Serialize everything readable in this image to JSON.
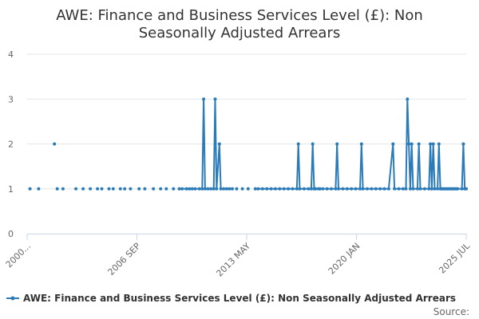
{
  "chart_data": {
    "type": "line",
    "title_lines": [
      "AWE: Finance and Business Services Level (£): Non",
      "Seasonally Adjusted Arrears"
    ],
    "xlabel": "",
    "ylabel": "",
    "ylim": [
      0,
      4
    ],
    "yticks": [
      "0",
      "1",
      "2",
      "3",
      "4"
    ],
    "xticks": [
      "2000...",
      "2006 SEP",
      "2013 MAY",
      "2020 JAN",
      "2025 JUL"
    ],
    "x_range": [
      "2000-01",
      "2025-07"
    ],
    "grid": "horizontal",
    "legend_position": "bottom",
    "color": "#2b7bb9",
    "source_label": "Source:",
    "series": [
      {
        "name": "AWE: Finance and Business Services Level (£): Non Seasonally Adjusted Arrears",
        "segments": [
          {
            "style": "points",
            "points": [
              [
                "2000-03",
                1
              ],
              [
                "2000-09",
                1
              ],
              [
                "2001-08",
                2
              ],
              [
                "2001-10",
                1
              ],
              [
                "2002-02",
                1
              ],
              [
                "2002-11",
                1
              ],
              [
                "2003-04",
                1
              ],
              [
                "2003-09",
                1
              ],
              [
                "2004-02",
                1
              ],
              [
                "2004-05",
                1
              ],
              [
                "2004-10",
                1
              ],
              [
                "2005-01",
                1
              ],
              [
                "2005-06",
                1
              ],
              [
                "2005-09",
                1
              ],
              [
                "2006-01",
                1
              ],
              [
                "2006-07",
                1
              ],
              [
                "2006-11",
                1
              ],
              [
                "2007-05",
                1
              ],
              [
                "2007-10",
                1
              ],
              [
                "2008-02",
                1
              ],
              [
                "2008-07",
                1
              ],
              [
                "2008-11",
                1
              ]
            ]
          },
          {
            "style": "line",
            "points": [
              [
                "2009-01",
                1
              ],
              [
                "2009-04",
                1
              ],
              [
                "2009-06",
                1
              ],
              [
                "2009-08",
                1
              ],
              [
                "2009-10",
                1
              ],
              [
                "2010-01",
                1
              ],
              [
                "2010-03",
                1
              ],
              [
                "2010-04",
                3
              ],
              [
                "2010-05",
                1
              ],
              [
                "2010-07",
                1
              ],
              [
                "2010-09",
                1
              ],
              [
                "2010-11",
                1
              ],
              [
                "2010-12",
                3
              ],
              [
                "2011-01",
                1
              ],
              [
                "2011-03",
                2
              ],
              [
                "2011-04",
                1
              ],
              [
                "2011-06",
                1
              ],
              [
                "2011-08",
                1
              ],
              [
                "2011-10",
                1
              ],
              [
                "2011-12",
                1
              ]
            ]
          },
          {
            "style": "points",
            "points": [
              [
                "2012-03",
                1
              ],
              [
                "2012-07",
                1
              ],
              [
                "2012-11",
                1
              ],
              [
                "2013-04",
                1
              ]
            ]
          },
          {
            "style": "line",
            "points": [
              [
                "2013-06",
                1
              ],
              [
                "2013-09",
                1
              ],
              [
                "2013-12",
                1
              ],
              [
                "2014-03",
                1
              ],
              [
                "2014-06",
                1
              ],
              [
                "2014-09",
                1
              ],
              [
                "2014-12",
                1
              ],
              [
                "2015-03",
                1
              ],
              [
                "2015-06",
                1
              ],
              [
                "2015-09",
                1
              ],
              [
                "2015-10",
                2
              ],
              [
                "2015-11",
                1
              ],
              [
                "2016-02",
                1
              ],
              [
                "2016-05",
                1
              ],
              [
                "2016-07",
                1
              ],
              [
                "2016-08",
                2
              ],
              [
                "2016-09",
                1
              ],
              [
                "2016-12",
                1
              ],
              [
                "2017-03",
                1
              ],
              [
                "2017-06",
                1
              ],
              [
                "2017-09",
                1
              ],
              [
                "2017-12",
                1
              ],
              [
                "2018-01",
                2
              ],
              [
                "2018-02",
                1
              ],
              [
                "2018-05",
                1
              ],
              [
                "2018-08",
                1
              ],
              [
                "2018-11",
                1
              ],
              [
                "2019-02",
                1
              ],
              [
                "2019-05",
                1
              ],
              [
                "2019-06",
                2
              ],
              [
                "2019-07",
                1
              ],
              [
                "2019-10",
                1
              ],
              [
                "2020-01",
                1
              ],
              [
                "2020-04",
                1
              ],
              [
                "2020-07",
                1
              ],
              [
                "2020-10",
                1
              ],
              [
                "2021-01",
                1
              ],
              [
                "2021-04",
                2
              ],
              [
                "2021-05",
                1
              ],
              [
                "2021-08",
                1
              ],
              [
                "2021-11",
                1
              ],
              [
                "2022-01",
                1
              ],
              [
                "2022-02",
                3
              ],
              [
                "2022-03",
                2
              ],
              [
                "2022-04",
                1
              ],
              [
                "2022-05",
                2
              ],
              [
                "2022-06",
                1
              ],
              [
                "2022-09",
                1
              ],
              [
                "2022-10",
                2
              ],
              [
                "2022-11",
                1
              ],
              [
                "2023-02",
                1
              ],
              [
                "2023-05",
                1
              ],
              [
                "2023-06",
                2
              ],
              [
                "2023-07",
                1
              ],
              [
                "2023-08",
                2
              ],
              [
                "2023-09",
                1
              ],
              [
                "2023-11",
                1
              ],
              [
                "2023-12",
                2
              ],
              [
                "2024-01",
                1
              ],
              [
                "2024-04",
                1
              ],
              [
                "2024-07",
                1
              ],
              [
                "2024-10",
                1
              ],
              [
                "2025-01",
                1
              ],
              [
                "2025-04",
                1
              ],
              [
                "2025-05",
                2
              ],
              [
                "2025-06",
                1
              ],
              [
                "2025-07",
                1
              ]
            ]
          },
          {
            "style": "line",
            "points": [
              [
                "2016-10",
                1
              ],
              [
                "2017-01",
                1
              ]
            ]
          },
          {
            "style": "line",
            "points": [
              [
                "2024-02",
                1
              ],
              [
                "2024-03",
                1
              ],
              [
                "2024-05",
                1
              ],
              [
                "2024-06",
                1
              ],
              [
                "2024-08",
                1
              ],
              [
                "2024-09",
                1
              ],
              [
                "2024-11",
                1
              ],
              [
                "2024-12",
                1
              ]
            ]
          }
        ]
      }
    ]
  }
}
